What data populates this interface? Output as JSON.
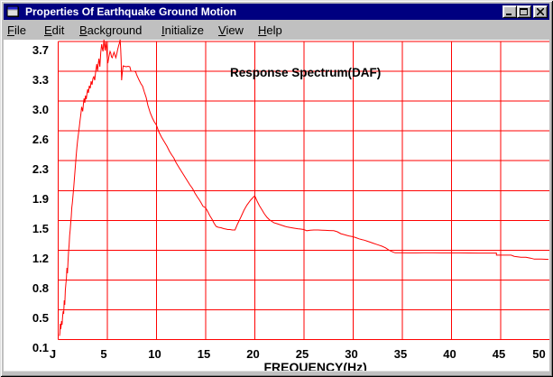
{
  "window": {
    "title": "Properties Of Earthquake Ground Motion",
    "icon": "application-window-icon",
    "controls": [
      {
        "name": "minimize",
        "icon": "minimize-icon"
      },
      {
        "name": "maximize",
        "icon": "maximize-icon"
      },
      {
        "name": "close",
        "icon": "close-icon"
      }
    ]
  },
  "menu": {
    "items": [
      {
        "label": "File",
        "mnemonic": 0
      },
      {
        "label": "Edit",
        "mnemonic": 0
      },
      {
        "label": "Background",
        "mnemonic": 0
      },
      {
        "label": "Initialize",
        "mnemonic": 0
      },
      {
        "label": "View",
        "mnemonic": 0
      },
      {
        "label": "Help",
        "mnemonic": 0
      }
    ]
  },
  "colors": {
    "titlebar": "#000080",
    "titlebar_text": "#ffffff",
    "chrome": "#c0c0c0",
    "plot_background": "#ffffff",
    "grid": "#ff0000",
    "line": "#ff0000",
    "axis_text": "#000000"
  },
  "chart_data": {
    "type": "line",
    "title": "Response Spectrum(DAF)",
    "xlabel": "FREQUENCY(Hz)",
    "ylabel": "",
    "xlim": [
      0,
      50
    ],
    "ylim": [
      0.1,
      3.7
    ],
    "grid": true,
    "x_gridlines": [
      0,
      5,
      10,
      15,
      20,
      25,
      30,
      35,
      40,
      45
    ],
    "x_tick_labels": [
      {
        "v": 0,
        "label": "J"
      },
      {
        "v": 5,
        "label": "5"
      },
      {
        "v": 10,
        "label": "10"
      },
      {
        "v": 15,
        "label": "15"
      },
      {
        "v": 20,
        "label": "20"
      },
      {
        "v": 25,
        "label": "25"
      },
      {
        "v": 30,
        "label": "30"
      },
      {
        "v": 35,
        "label": "35"
      },
      {
        "v": 40,
        "label": "40"
      },
      {
        "v": 45,
        "label": "45"
      },
      {
        "v": 50,
        "label": "50"
      }
    ],
    "y_gridlines": [
      3.7,
      3.34,
      2.98,
      2.62,
      2.26,
      1.9,
      1.54,
      1.18,
      0.82,
      0.46,
      0.1
    ],
    "y_tick_labels": [
      "3.7",
      "3.3",
      "3.0",
      "2.6",
      "2.3",
      "1.9",
      "1.5",
      "1.2",
      "0.8",
      "0.5",
      "0.1"
    ],
    "series": [
      {
        "name": "DAF",
        "x": [
          0.138,
          0.174,
          0.211,
          0.248,
          0.284,
          0.339,
          0.394,
          0.45,
          0.505,
          0.56,
          0.615,
          0.67,
          0.725,
          0.78,
          0.835,
          0.89,
          0.945,
          1.0,
          1.055,
          1.11,
          1.165,
          1.22,
          1.275,
          1.33,
          1.385,
          1.44,
          1.514,
          1.578,
          1.642,
          1.706,
          1.771,
          1.835,
          1.899,
          1.972,
          2.064,
          2.156,
          2.229,
          2.303,
          2.385,
          2.495,
          2.569,
          2.633,
          2.706,
          2.78,
          2.853,
          2.927,
          3.0,
          3.073,
          3.165,
          3.257,
          3.349,
          3.44,
          3.532,
          3.624,
          3.716,
          3.807,
          3.927,
          4.009,
          4.083,
          4.147,
          4.239,
          4.33,
          4.422,
          4.495,
          4.56,
          4.651,
          4.725,
          4.78,
          4.844,
          4.908,
          4.991,
          5.055,
          5.138,
          5.211,
          5.275,
          5.349,
          5.422,
          5.495,
          5.587,
          5.679,
          5.771,
          5.862,
          5.954,
          6.046,
          6.138,
          6.22,
          6.303,
          6.358,
          6.404,
          6.45,
          6.523,
          6.606,
          6.743,
          6.927,
          7.11,
          7.284,
          7.404,
          7.569,
          7.752,
          7.89,
          7.982,
          8.193,
          8.422,
          8.578,
          8.761,
          8.945,
          9.128,
          9.358,
          9.587,
          9.771,
          9.982,
          10.229,
          10.505,
          10.78,
          11.055,
          11.33,
          11.56,
          11.752,
          11.972,
          12.248,
          12.477,
          12.706,
          12.936,
          13.165,
          13.394,
          13.661,
          13.899,
          14.128,
          14.376,
          14.541,
          14.725,
          15.0,
          15.183,
          15.413,
          15.642,
          15.826,
          16.055,
          16.284,
          16.56,
          16.835,
          17.064,
          17.257,
          17.477,
          17.706,
          17.982,
          18.211,
          18.587,
          18.899,
          19.193,
          19.55,
          19.771,
          19.991,
          20.229,
          20.459,
          20.688,
          20.963,
          21.239,
          21.468,
          21.725,
          21.963,
          22.248,
          22.523,
          22.798,
          23.073,
          23.349,
          23.661,
          23.991,
          24.358,
          24.679,
          24.982,
          25.275,
          25.642,
          26.009,
          26.44,
          26.835,
          27.202,
          27.569,
          28.028,
          28.394,
          28.743,
          29.037,
          29.358,
          29.633,
          29.945,
          30.275,
          30.596,
          30.872,
          31.138,
          31.422,
          31.697,
          32.018,
          32.339,
          32.615,
          32.936,
          33.294,
          33.651,
          34.018,
          34.266,
          34.908,
          35.55,
          36.284,
          37.202,
          38.119,
          39.037,
          39.954,
          40.872,
          41.789,
          42.706,
          43.624,
          44.569,
          44.569,
          45.275,
          46.064,
          46.376,
          47.055,
          47.569,
          48.028,
          48.422,
          49.128,
          49.862
        ],
        "y": [
          0.144,
          0.182,
          0.291,
          0.225,
          0.247,
          0.323,
          0.28,
          0.378,
          0.443,
          0.41,
          0.574,
          0.519,
          0.694,
          0.77,
          0.835,
          0.966,
          0.901,
          1.042,
          1.162,
          1.238,
          1.358,
          1.423,
          1.511,
          1.587,
          1.696,
          1.75,
          1.848,
          1.935,
          2.033,
          2.131,
          2.23,
          2.328,
          2.415,
          2.502,
          2.589,
          2.676,
          2.752,
          2.818,
          2.91,
          2.856,
          2.948,
          3.014,
          2.959,
          3.046,
          3.003,
          3.068,
          3.123,
          3.079,
          3.166,
          3.134,
          3.221,
          3.177,
          3.253,
          3.275,
          3.232,
          3.33,
          3.428,
          3.341,
          3.439,
          3.493,
          3.395,
          3.569,
          3.667,
          3.613,
          3.58,
          3.722,
          3.635,
          3.591,
          3.7,
          3.635,
          3.493,
          3.439,
          3.504,
          3.548,
          3.58,
          3.558,
          3.515,
          3.504,
          3.537,
          3.569,
          3.537,
          3.504,
          3.548,
          3.602,
          3.646,
          3.678,
          3.722,
          3.602,
          3.471,
          3.232,
          3.33,
          3.406,
          3.4,
          3.395,
          3.4,
          3.395,
          3.341,
          3.341,
          3.341,
          3.33,
          3.297,
          3.243,
          3.188,
          3.161,
          3.09,
          3.025,
          2.927,
          2.839,
          2.774,
          2.731,
          2.692,
          2.611,
          2.545,
          2.491,
          2.436,
          2.371,
          2.328,
          2.295,
          2.24,
          2.186,
          2.142,
          2.099,
          2.055,
          2.012,
          1.968,
          1.925,
          1.87,
          1.826,
          1.783,
          1.75,
          1.71,
          1.69,
          1.652,
          1.598,
          1.554,
          1.511,
          1.467,
          1.456,
          1.451,
          1.44,
          1.434,
          1.429,
          1.429,
          1.423,
          1.423,
          1.489,
          1.581,
          1.663,
          1.724,
          1.782,
          1.81,
          1.837,
          1.772,
          1.718,
          1.674,
          1.62,
          1.576,
          1.549,
          1.527,
          1.51,
          1.5,
          1.489,
          1.478,
          1.467,
          1.458,
          1.452,
          1.445,
          1.439,
          1.434,
          1.429,
          1.415,
          1.421,
          1.423,
          1.423,
          1.421,
          1.419,
          1.417,
          1.415,
          1.402,
          1.379,
          1.369,
          1.358,
          1.349,
          1.343,
          1.331,
          1.317,
          1.308,
          1.3,
          1.288,
          1.277,
          1.264,
          1.251,
          1.24,
          1.227,
          1.208,
          1.179,
          1.159,
          1.148,
          1.148,
          1.147,
          1.147,
          1.148,
          1.148,
          1.147,
          1.147,
          1.147,
          1.146,
          1.145,
          1.145,
          1.145,
          1.12,
          1.12,
          1.12,
          1.105,
          1.094,
          1.094,
          1.084,
          1.072,
          1.072,
          1.068
        ]
      }
    ]
  }
}
